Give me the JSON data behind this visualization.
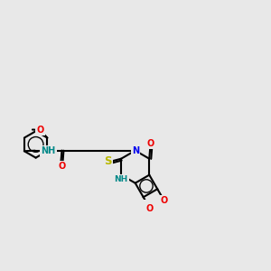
{
  "bg": "#e8e8e8",
  "bc": "#000000",
  "lw": 1.5,
  "fs": 7.0,
  "col_N": "#0000ee",
  "col_O": "#ee0000",
  "col_S": "#b8b800",
  "col_NH": "#008888",
  "xlim": [
    0,
    10.5
  ],
  "ylim": [
    3.5,
    8.5
  ]
}
